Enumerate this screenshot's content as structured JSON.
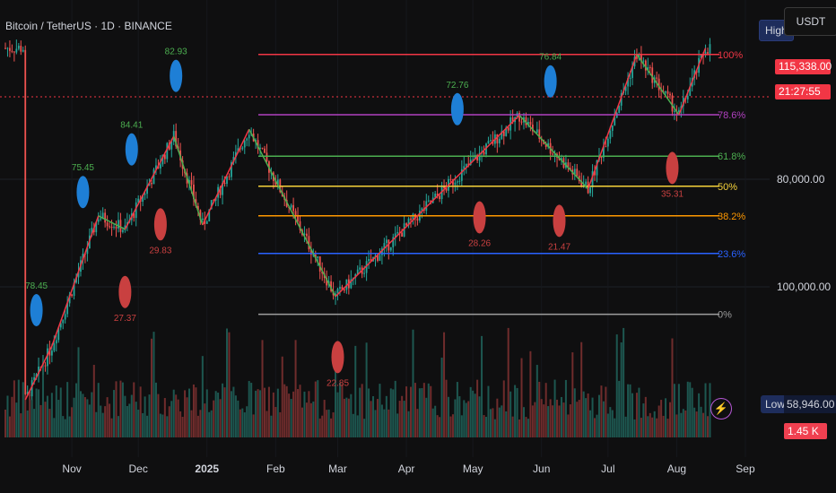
{
  "title": "Bitcoin / TetherUS · 1D · BINANCE",
  "price_axis": {
    "labels": [
      "100,000.00",
      "80,000.00"
    ],
    "current_price": "115,338.00",
    "countdown": "21:27:55",
    "high_label": "High",
    "quote": "USDT",
    "low_label": "Low",
    "low_value": "58,946.00",
    "volume_value": "1.45 K"
  },
  "colors": {
    "bg": "#0f0f10",
    "up": "#26a69a",
    "down": "#ef5350",
    "zig_up": "#f23645",
    "zig_down": "#4caf50",
    "bubble_blue": "#1e7fd6",
    "bubble_red": "#c94040"
  },
  "chart_data": {
    "type": "candlestick",
    "x_tick_labels": [
      "Nov",
      "Dec",
      "2025",
      "Feb",
      "Mar",
      "Apr",
      "May",
      "Jun",
      "Jul",
      "Aug",
      "Sep"
    ],
    "y_tick_values": [
      80000,
      100000
    ],
    "ylim": [
      58946,
      121000
    ],
    "zigzag": [
      {
        "date": "2024-10-11",
        "price": 59000
      },
      {
        "date": "2024-10-23",
        "price": 69000
      },
      {
        "date": "2024-11-13",
        "price": 93200
      },
      {
        "date": "2024-11-25",
        "price": 90700
      },
      {
        "date": "2024-12-17",
        "price": 108000
      },
      {
        "date": "2024-12-30",
        "price": 91500
      },
      {
        "date": "2025-01-20",
        "price": 109300
      },
      {
        "date": "2025-02-28",
        "price": 78200
      },
      {
        "date": "2025-05-22",
        "price": 111900
      },
      {
        "date": "2025-06-22",
        "price": 98200
      },
      {
        "date": "2025-07-14",
        "price": 123200
      },
      {
        "date": "2025-08-02",
        "price": 112000
      },
      {
        "date": "2025-08-14",
        "price": 124400
      }
    ],
    "fib_levels": [
      {
        "label": "100%",
        "price": 123200,
        "color": "#f23645"
      },
      {
        "label": "78.6%",
        "price": 112000,
        "color": "#b040c0"
      },
      {
        "label": "61.8%",
        "price": 104300,
        "color": "#4caf50"
      },
      {
        "label": "50%",
        "price": 98700,
        "color": "#f5d23a"
      },
      {
        "label": "38.2%",
        "price": 93200,
        "color": "#ff9800"
      },
      {
        "label": "23.6%",
        "price": 86200,
        "color": "#2962ff"
      },
      {
        "label": "0%",
        "price": 74900,
        "color": "#9e9e9e"
      }
    ],
    "rsi_labels": [
      {
        "text": "78.45",
        "date": "2024-10-16",
        "bubble": "blue",
        "kind": "high"
      },
      {
        "text": "75.45",
        "date": "2024-11-06",
        "bubble": "blue",
        "kind": "high"
      },
      {
        "text": "84.41",
        "date": "2024-11-28",
        "bubble": "blue",
        "kind": "high"
      },
      {
        "text": "82.93",
        "date": "2024-12-18",
        "bubble": "blue",
        "kind": "high"
      },
      {
        "text": "27.37",
        "date": "2024-11-25",
        "bubble": "red",
        "kind": "low"
      },
      {
        "text": "29.83",
        "date": "2024-12-11",
        "bubble": "red",
        "kind": "low"
      },
      {
        "text": "72.76",
        "date": "2025-04-24",
        "bubble": "blue",
        "kind": "high"
      },
      {
        "text": "28.26",
        "date": "2025-05-04",
        "bubble": "red",
        "kind": "low"
      },
      {
        "text": "21.47",
        "date": "2025-06-09",
        "bubble": "red",
        "kind": "low"
      },
      {
        "text": "76.84",
        "date": "2025-06-05",
        "bubble": "blue",
        "kind": "high"
      },
      {
        "text": "22.85",
        "date": "2025-03-01",
        "bubble": "red",
        "kind": "low"
      },
      {
        "text": "35.31",
        "date": "2025-07-30",
        "bubble": "red",
        "kind": "low"
      }
    ]
  }
}
